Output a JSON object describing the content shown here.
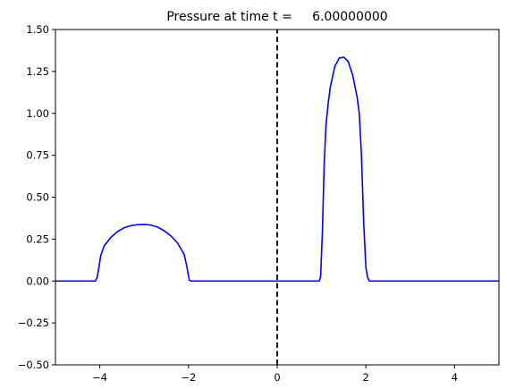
{
  "chart_data": {
    "type": "line",
    "title": "Pressure at time t =     6.00000000",
    "xlabel": "",
    "ylabel": "",
    "xlim": [
      -5,
      5
    ],
    "ylim": [
      -0.5,
      1.5
    ],
    "grid": false,
    "xticks": [
      -4,
      -2,
      0,
      2,
      4
    ],
    "xtick_labels": [
      "−4",
      "−2",
      "0",
      "2",
      "4"
    ],
    "yticks": [
      -0.5,
      -0.25,
      0.0,
      0.25,
      0.5,
      0.75,
      1.0,
      1.25,
      1.5
    ],
    "ytick_labels": [
      "−0.50",
      "−0.25",
      "0.00",
      "0.25",
      "0.50",
      "0.75",
      "1.00",
      "1.25",
      "1.50"
    ],
    "series": [
      {
        "color": "#0000ff",
        "style": "solid",
        "x": [
          -5.0,
          -4.1,
          -4.06,
          -4.02,
          -3.98,
          -3.9,
          -3.75,
          -3.6,
          -3.45,
          -3.3,
          -3.15,
          -3.0,
          -2.85,
          -2.7,
          -2.55,
          -2.4,
          -2.25,
          -2.1,
          -2.04,
          -2.0,
          -1.98,
          -1.94,
          0.95,
          0.98,
          1.02,
          1.06,
          1.1,
          1.15,
          1.2,
          1.3,
          1.4,
          1.5,
          1.6,
          1.7,
          1.8,
          1.85,
          1.9,
          1.95,
          2.0,
          2.04,
          2.08,
          5.0
        ],
        "y": [
          0.0,
          0.0,
          0.02,
          0.08,
          0.15,
          0.21,
          0.26,
          0.295,
          0.318,
          0.33,
          0.336,
          0.337,
          0.334,
          0.322,
          0.3,
          0.27,
          0.228,
          0.16,
          0.09,
          0.03,
          0.005,
          0.0,
          0.0,
          0.03,
          0.3,
          0.7,
          0.93,
          1.06,
          1.16,
          1.28,
          1.33,
          1.335,
          1.31,
          1.23,
          1.1,
          1.0,
          0.75,
          0.35,
          0.08,
          0.02,
          0.0,
          0.0
        ]
      },
      {
        "color": "#000000",
        "style": "dashed",
        "x": [
          0,
          0
        ],
        "y": [
          -0.5,
          1.5
        ]
      }
    ]
  }
}
